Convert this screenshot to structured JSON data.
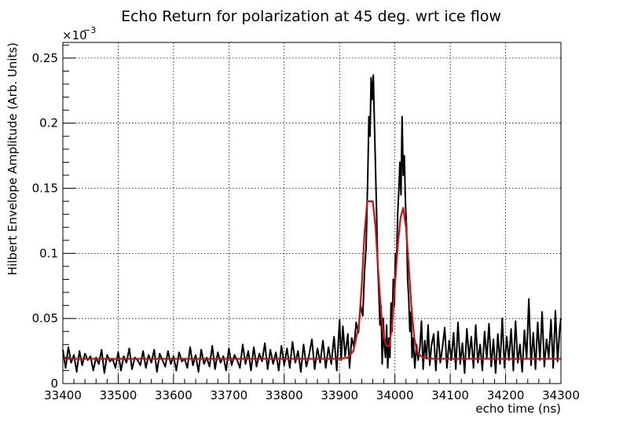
{
  "chart_data": {
    "type": "line",
    "title": "Echo Return for polarization at 45 deg. wrt ice flow",
    "xlabel": "echo time (ns)",
    "ylabel": "Hilbert Envelope Amplitude (Arb. Units)",
    "y_multiplier_label": "×10",
    "y_multiplier_exp": "−3",
    "xlim": [
      33400,
      34300
    ],
    "ylim": [
      0,
      0.262
    ],
    "x_ticks": [
      33400,
      33500,
      33600,
      33700,
      33800,
      33900,
      34000,
      34100,
      34200,
      34300
    ],
    "x_tick_labels": [
      "33400",
      "33500",
      "33600",
      "33700",
      "33800",
      "33900",
      "34000",
      "34100",
      "34200",
      "34300"
    ],
    "y_ticks": [
      0,
      0.05,
      0.1,
      0.15,
      0.2,
      0.25
    ],
    "y_tick_labels": [
      "0",
      "0.05",
      "0.1",
      "0.15",
      "0.2",
      "0.25"
    ],
    "grid": true,
    "series": [
      {
        "color": "#000000",
        "points": [
          [
            33400,
            0.026
          ],
          [
            33405,
            0.012
          ],
          [
            33410,
            0.028
          ],
          [
            33415,
            0.016
          ],
          [
            33420,
            0.022
          ],
          [
            33425,
            0.009
          ],
          [
            33430,
            0.025
          ],
          [
            33435,
            0.014
          ],
          [
            33440,
            0.023
          ],
          [
            33445,
            0.018
          ],
          [
            33450,
            0.021
          ],
          [
            33455,
            0.01
          ],
          [
            33460,
            0.02
          ],
          [
            33465,
            0.015
          ],
          [
            33470,
            0.026
          ],
          [
            33475,
            0.008
          ],
          [
            33480,
            0.022
          ],
          [
            33485,
            0.017
          ],
          [
            33490,
            0.019
          ],
          [
            33495,
            0.012
          ],
          [
            33500,
            0.024
          ],
          [
            33505,
            0.01
          ],
          [
            33510,
            0.021
          ],
          [
            33515,
            0.016
          ],
          [
            33520,
            0.027
          ],
          [
            33525,
            0.011
          ],
          [
            33530,
            0.02
          ],
          [
            33535,
            0.018
          ],
          [
            33540,
            0.014
          ],
          [
            33545,
            0.025
          ],
          [
            33550,
            0.012
          ],
          [
            33555,
            0.022
          ],
          [
            33560,
            0.016
          ],
          [
            33565,
            0.026
          ],
          [
            33570,
            0.009
          ],
          [
            33575,
            0.023
          ],
          [
            33580,
            0.018
          ],
          [
            33585,
            0.013
          ],
          [
            33590,
            0.025
          ],
          [
            33595,
            0.015
          ],
          [
            33600,
            0.021
          ],
          [
            33605,
            0.01
          ],
          [
            33610,
            0.024
          ],
          [
            33615,
            0.017
          ],
          [
            33620,
            0.019
          ],
          [
            33625,
            0.012
          ],
          [
            33630,
            0.028
          ],
          [
            33635,
            0.014
          ],
          [
            33640,
            0.022
          ],
          [
            33645,
            0.009
          ],
          [
            33650,
            0.026
          ],
          [
            33655,
            0.015
          ],
          [
            33660,
            0.02
          ],
          [
            33665,
            0.013
          ],
          [
            33670,
            0.029
          ],
          [
            33675,
            0.011
          ],
          [
            33680,
            0.024
          ],
          [
            33685,
            0.016
          ],
          [
            33690,
            0.021
          ],
          [
            33695,
            0.01
          ],
          [
            33700,
            0.027
          ],
          [
            33705,
            0.014
          ],
          [
            33710,
            0.022
          ],
          [
            33715,
            0.018
          ],
          [
            33720,
            0.012
          ],
          [
            33725,
            0.03
          ],
          [
            33730,
            0.015
          ],
          [
            33735,
            0.025
          ],
          [
            33740,
            0.01
          ],
          [
            33745,
            0.028
          ],
          [
            33750,
            0.013
          ],
          [
            33755,
            0.023
          ],
          [
            33760,
            0.017
          ],
          [
            33765,
            0.031
          ],
          [
            33770,
            0.011
          ],
          [
            33775,
            0.026
          ],
          [
            33780,
            0.015
          ],
          [
            33785,
            0.024
          ],
          [
            33790,
            0.01
          ],
          [
            33795,
            0.029
          ],
          [
            33800,
            0.014
          ],
          [
            33805,
            0.027
          ],
          [
            33810,
            0.012
          ],
          [
            33815,
            0.032
          ],
          [
            33820,
            0.016
          ],
          [
            33825,
            0.025
          ],
          [
            33830,
            0.009
          ],
          [
            33835,
            0.03
          ],
          [
            33840,
            0.013
          ],
          [
            33845,
            0.022
          ],
          [
            33850,
            0.034
          ],
          [
            33855,
            0.011
          ],
          [
            33860,
            0.027
          ],
          [
            33865,
            0.016
          ],
          [
            33870,
            0.033
          ],
          [
            33875,
            0.012
          ],
          [
            33880,
            0.028
          ],
          [
            33885,
            0.015
          ],
          [
            33890,
            0.036
          ],
          [
            33895,
            0.01
          ],
          [
            33900,
            0.049
          ],
          [
            33903,
            0.018
          ],
          [
            33906,
            0.044
          ],
          [
            33910,
            0.021
          ],
          [
            33915,
            0.038
          ],
          [
            33918,
            0.012
          ],
          [
            33922,
            0.035
          ],
          [
            33926,
            0.028
          ],
          [
            33930,
            0.047
          ],
          [
            33934,
            0.039
          ],
          [
            33938,
            0.06
          ],
          [
            33942,
            0.052
          ],
          [
            33945,
            0.085
          ],
          [
            33948,
            0.105
          ],
          [
            33951,
            0.16
          ],
          [
            33953,
            0.205
          ],
          [
            33955,
            0.19
          ],
          [
            33957,
            0.235
          ],
          [
            33959,
            0.218
          ],
          [
            33961,
            0.237
          ],
          [
            33963,
            0.2
          ],
          [
            33965,
            0.165
          ],
          [
            33967,
            0.13
          ],
          [
            33969,
            0.09
          ],
          [
            33971,
            0.07
          ],
          [
            33973,
            0.045
          ],
          [
            33975,
            0.06
          ],
          [
            33977,
            0.015
          ],
          [
            33979,
            0.05
          ],
          [
            33981,
            0.028
          ],
          [
            33983,
            0.02
          ],
          [
            33985,
            0.045
          ],
          [
            33987,
            0.012
          ],
          [
            33989,
            0.035
          ],
          [
            33991,
            0.02
          ],
          [
            33993,
            0.062
          ],
          [
            33995,
            0.04
          ],
          [
            33997,
            0.08
          ],
          [
            33999,
            0.06
          ],
          [
            34001,
            0.1
          ],
          [
            34003,
            0.095
          ],
          [
            34005,
            0.13
          ],
          [
            34007,
            0.148
          ],
          [
            34009,
            0.17
          ],
          [
            34011,
            0.145
          ],
          [
            34013,
            0.205
          ],
          [
            34015,
            0.16
          ],
          [
            34017,
            0.175
          ],
          [
            34019,
            0.14
          ],
          [
            34021,
            0.12
          ],
          [
            34023,
            0.08
          ],
          [
            34025,
            0.065
          ],
          [
            34027,
            0.04
          ],
          [
            34029,
            0.055
          ],
          [
            34031,
            0.02
          ],
          [
            34033,
            0.035
          ],
          [
            34036,
            0.012
          ],
          [
            34039,
            0.03
          ],
          [
            34042,
            0.018
          ],
          [
            34045,
            0.027
          ],
          [
            34048,
            0.048
          ],
          [
            34051,
            0.011
          ],
          [
            34054,
            0.033
          ],
          [
            34057,
            0.019
          ],
          [
            34060,
            0.045
          ],
          [
            34063,
            0.014
          ],
          [
            34066,
            0.029
          ],
          [
            34070,
            0.038
          ],
          [
            34074,
            0.01
          ],
          [
            34078,
            0.04
          ],
          [
            34082,
            0.016
          ],
          [
            34086,
            0.028
          ],
          [
            34090,
            0.043
          ],
          [
            34094,
            0.012
          ],
          [
            34098,
            0.033
          ],
          [
            34102,
            0.018
          ],
          [
            34106,
            0.039
          ],
          [
            34110,
            0.011
          ],
          [
            34114,
            0.047
          ],
          [
            34118,
            0.015
          ],
          [
            34122,
            0.031
          ],
          [
            34126,
            0.008
          ],
          [
            34130,
            0.042
          ],
          [
            34134,
            0.02
          ],
          [
            34138,
            0.036
          ],
          [
            34142,
            0.012
          ],
          [
            34146,
            0.045
          ],
          [
            34150,
            0.016
          ],
          [
            34154,
            0.03
          ],
          [
            34158,
            0.01
          ],
          [
            34162,
            0.04
          ],
          [
            34166,
            0.019
          ],
          [
            34170,
            0.046
          ],
          [
            34174,
            0.013
          ],
          [
            34178,
            0.034
          ],
          [
            34182,
            0.008
          ],
          [
            34186,
            0.038
          ],
          [
            34190,
            0.015
          ],
          [
            34194,
            0.05
          ],
          [
            34198,
            0.012
          ],
          [
            34202,
            0.036
          ],
          [
            34206,
            0.018
          ],
          [
            34210,
            0.042
          ],
          [
            34214,
            0.01
          ],
          [
            34218,
            0.048
          ],
          [
            34222,
            0.016
          ],
          [
            34226,
            0.03
          ],
          [
            34230,
            0.009
          ],
          [
            34234,
            0.041
          ],
          [
            34238,
            0.019
          ],
          [
            34242,
            0.065
          ],
          [
            34246,
            0.014
          ],
          [
            34250,
            0.039
          ],
          [
            34254,
            0.011
          ],
          [
            34258,
            0.047
          ],
          [
            34262,
            0.018
          ],
          [
            34266,
            0.055
          ],
          [
            34270,
            0.013
          ],
          [
            34274,
            0.034
          ],
          [
            34278,
            0.02
          ],
          [
            34282,
            0.049
          ],
          [
            34286,
            0.012
          ],
          [
            34290,
            0.056
          ],
          [
            34294,
            0.017
          ],
          [
            34298,
            0.043
          ],
          [
            34300,
            0.05
          ]
        ]
      },
      {
        "color": "#d01010",
        "points": [
          [
            33400,
            0.019
          ],
          [
            33900,
            0.019
          ],
          [
            33915,
            0.02
          ],
          [
            33925,
            0.025
          ],
          [
            33935,
            0.045
          ],
          [
            33940,
            0.075
          ],
          [
            33945,
            0.115
          ],
          [
            33950,
            0.14
          ],
          [
            33960,
            0.14
          ],
          [
            33965,
            0.12
          ],
          [
            33970,
            0.085
          ],
          [
            33975,
            0.055
          ],
          [
            33980,
            0.035
          ],
          [
            33985,
            0.029
          ],
          [
            33990,
            0.029
          ],
          [
            33995,
            0.045
          ],
          [
            34000,
            0.075
          ],
          [
            34005,
            0.105
          ],
          [
            34010,
            0.127
          ],
          [
            34015,
            0.135
          ],
          [
            34020,
            0.12
          ],
          [
            34025,
            0.09
          ],
          [
            34030,
            0.058
          ],
          [
            34035,
            0.035
          ],
          [
            34040,
            0.024
          ],
          [
            34050,
            0.02
          ],
          [
            34070,
            0.019
          ],
          [
            34300,
            0.019
          ]
        ]
      }
    ]
  }
}
